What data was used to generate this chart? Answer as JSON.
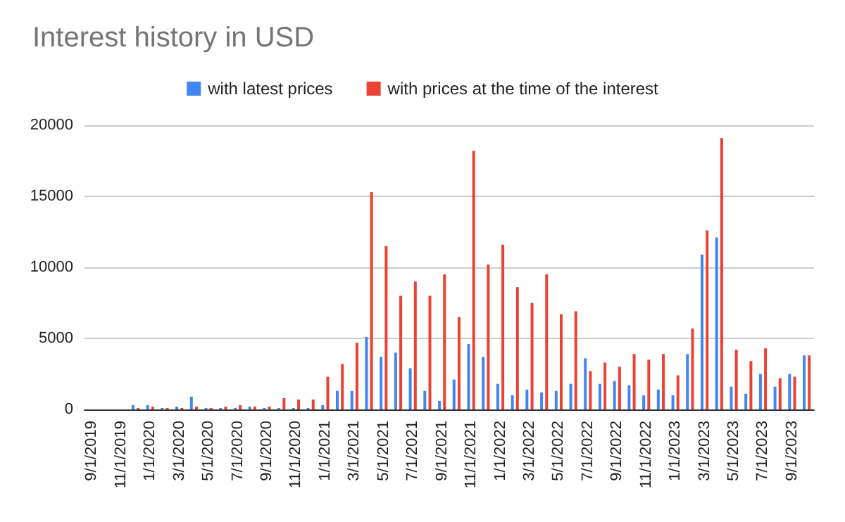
{
  "chart_data": {
    "type": "bar",
    "title": "Interest history in USD",
    "categories": [
      "9/1/2019",
      null,
      "11/1/2019",
      null,
      "1/1/2020",
      null,
      "3/1/2020",
      null,
      "5/1/2020",
      null,
      "7/1/2020",
      null,
      "9/1/2020",
      null,
      "11/1/2020",
      null,
      "1/1/2021",
      null,
      "3/1/2021",
      null,
      "5/1/2021",
      null,
      "7/1/2021",
      null,
      "9/1/2021",
      null,
      "11/1/2021",
      null,
      "1/1/2022",
      null,
      "3/1/2022",
      null,
      "5/1/2022",
      null,
      "7/1/2022",
      null,
      "9/1/2022",
      null,
      "11/1/2022",
      null,
      "1/1/2023",
      null,
      "3/1/2023",
      null,
      "5/1/2023",
      null,
      "7/1/2023",
      null,
      "9/1/2023",
      null
    ],
    "series": [
      {
        "name": "with latest prices",
        "color": "#4285f4",
        "values": [
          0,
          0,
          0,
          300,
          300,
          100,
          200,
          900,
          100,
          100,
          100,
          200,
          100,
          100,
          100,
          100,
          300,
          1300,
          1300,
          5100,
          3700,
          4000,
          2900,
          1300,
          600,
          2100,
          4600,
          3700,
          1800,
          1000,
          1400,
          1200,
          1300,
          1800,
          3600,
          1800,
          2000,
          1700,
          1000,
          1400,
          1000,
          3900,
          10900,
          12100,
          1600,
          1100,
          2500,
          1600,
          2500,
          3800
        ]
      },
      {
        "name": "with prices at the time of the interest",
        "color": "#ea4335",
        "values": [
          0,
          0,
          0,
          100,
          200,
          100,
          100,
          200,
          100,
          200,
          300,
          200,
          200,
          800,
          700,
          700,
          2300,
          3200,
          4700,
          15300,
          11500,
          8000,
          9000,
          8000,
          9500,
          6500,
          18200,
          10200,
          11600,
          8600,
          7500,
          9500,
          6700,
          6900,
          2700,
          3300,
          3000,
          3900,
          3500,
          3900,
          2400,
          5700,
          12600,
          19100,
          4200,
          3400,
          4300,
          2200,
          2300,
          3800
        ]
      }
    ],
    "ylim": [
      0,
      20000
    ],
    "yticks": [
      0,
      5000,
      10000,
      15000,
      20000
    ],
    "grid": "y",
    "legend": "top"
  }
}
